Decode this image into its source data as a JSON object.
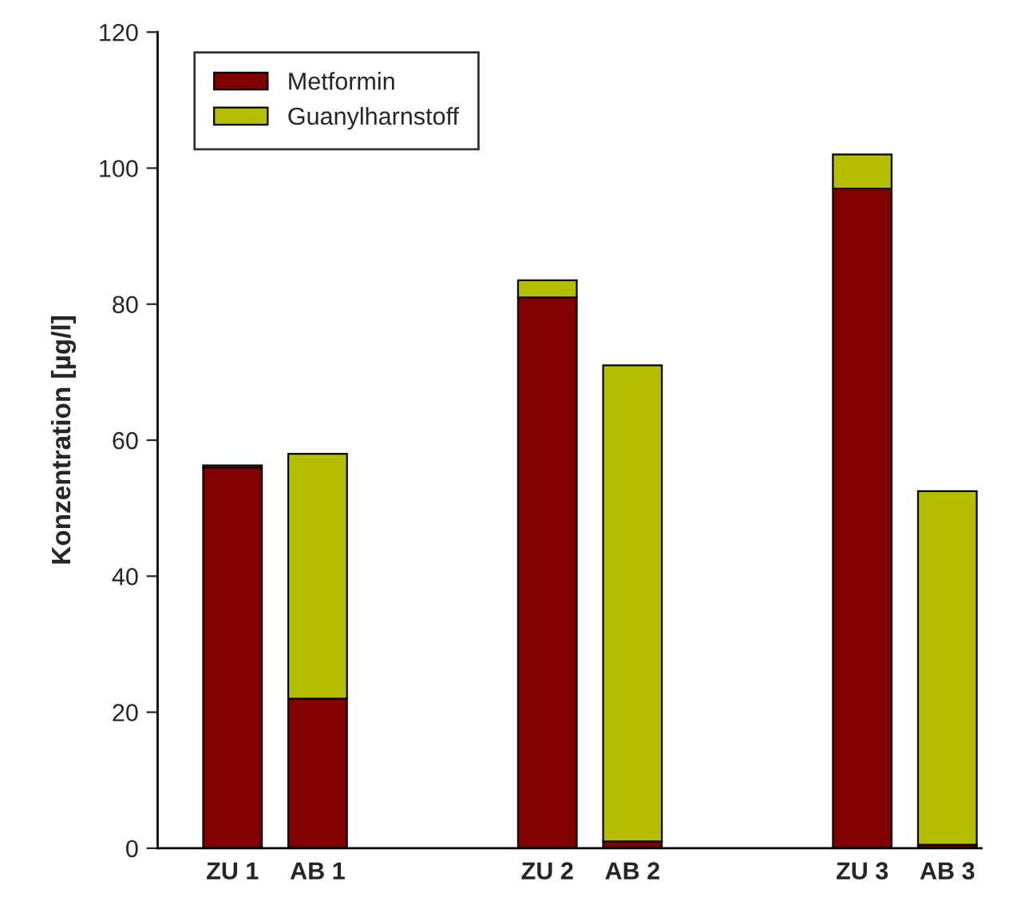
{
  "chart_data": {
    "type": "bar",
    "stacked": true,
    "ylabel": "Konzentration [µg/l]",
    "categories": [
      "ZU 1",
      "AB 1",
      "ZU 2",
      "AB 2",
      "ZU 3",
      "AB 3"
    ],
    "series": [
      {
        "name": "Metformin",
        "color": "#800000",
        "values": [
          56,
          22,
          81,
          1,
          97,
          0.5
        ]
      },
      {
        "name": "Guanylharnstoff",
        "color": "#b5bf00",
        "values": [
          0.3,
          36,
          2.5,
          70,
          5,
          52
        ]
      }
    ],
    "ylim": [
      0,
      120
    ],
    "yticks": [
      0,
      20,
      40,
      60,
      80,
      100,
      120
    ],
    "grid": false,
    "legend": "top left"
  }
}
